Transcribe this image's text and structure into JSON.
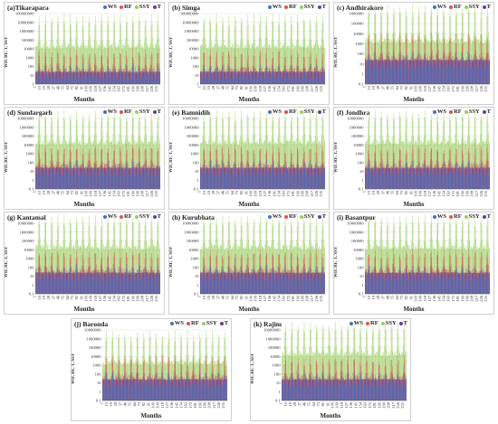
{
  "colors": {
    "WS": "#4a6fbf",
    "RF": "#d9534f",
    "SSY": "#9acd60",
    "T": "#6a3d9a"
  },
  "chart_data": [
    {
      "type": "bar",
      "title": "(a)Tikarapara",
      "legend": [
        "WS",
        "RF",
        "SSY",
        "T"
      ],
      "ylabel": "WD, RF, T, SSY",
      "xlabel": "Months",
      "yscale": "log",
      "yticks": [
        "1",
        "10",
        "100",
        "1000",
        "10000",
        "100000",
        "1000000",
        "10000000",
        "100000000"
      ],
      "xticks": [
        "1",
        "10",
        "19",
        "28",
        "37",
        "46",
        "55",
        "64",
        "73",
        "82",
        "91",
        "100",
        "109",
        "118",
        "127",
        "136",
        "145",
        "154",
        "163",
        "172",
        "181",
        "190",
        "199",
        "208",
        "217",
        "226",
        "235"
      ],
      "series_levels": {
        "WS": 10,
        "RF": 100,
        "SSY": 100000,
        "T": 25
      }
    },
    {
      "type": "bar",
      "title": "(b) Simga",
      "legend": [
        "WS",
        "RF",
        "SSY",
        "T"
      ],
      "ylabel": "WD, RF, T, SSY",
      "xlabel": "Months",
      "yscale": "log",
      "yticks": [
        "1",
        "10",
        "100",
        "1000",
        "10000",
        "100000",
        "1000000",
        "10000000",
        "100000000"
      ],
      "xticks": [
        "1",
        "10",
        "19",
        "28",
        "37",
        "46",
        "55",
        "64",
        "73",
        "82",
        "91",
        "100",
        "109",
        "118",
        "127",
        "136",
        "145",
        "154",
        "163",
        "172",
        "181",
        "190",
        "199",
        "208",
        "217",
        "226",
        "235"
      ],
      "series_levels": {
        "WS": 10,
        "RF": 100,
        "SSY": 100000,
        "T": 25
      }
    },
    {
      "type": "bar",
      "title": "(c) Andhirakore",
      "legend": [
        "WS",
        "RF",
        "SSY",
        "T"
      ],
      "ylabel": "WD, RF, T, SSY",
      "xlabel": "Months",
      "yscale": "log",
      "yticks": [
        "0.1",
        "1",
        "10",
        "100",
        "1000",
        "10000",
        "100000",
        "1000000"
      ],
      "xticks": [
        "1",
        "10",
        "19",
        "28",
        "37",
        "46",
        "55",
        "64",
        "73",
        "82",
        "91",
        "100",
        "109",
        "118",
        "127",
        "136",
        "145",
        "154",
        "163",
        "172",
        "181",
        "190",
        "199",
        "208",
        "217",
        "226",
        "235"
      ],
      "series_levels": {
        "WS": 10,
        "RF": 100,
        "SSY": 10000,
        "T": 25
      }
    },
    {
      "type": "bar",
      "title": "(d) Sundargarh",
      "legend": [
        "WS",
        "RF",
        "SSY",
        "T"
      ],
      "ylabel": "WD, RF, T, SSY",
      "xlabel": "Months",
      "yscale": "log",
      "yticks": [
        "0.1",
        "1",
        "10",
        "100",
        "1000",
        "10000",
        "100000",
        "1000000",
        "10000000"
      ],
      "xticks": [
        "1",
        "10",
        "19",
        "28",
        "37",
        "46",
        "55",
        "64",
        "73",
        "82",
        "91",
        "100",
        "109",
        "118",
        "127",
        "136",
        "145",
        "154",
        "163",
        "172",
        "181",
        "190",
        "199",
        "208",
        "217",
        "226",
        "235"
      ],
      "series_levels": {
        "WS": 10,
        "RF": 100,
        "SSY": 100000,
        "T": 25
      }
    },
    {
      "type": "bar",
      "title": "(e) Bamnidih",
      "legend": [
        "WS",
        "RF",
        "SSY",
        "T"
      ],
      "ylabel": "WD, RF, T, SSY",
      "xlabel": "Months",
      "yscale": "log",
      "yticks": [
        "0.1",
        "1",
        "10",
        "100",
        "1000",
        "10000",
        "100000",
        "1000000",
        "10000000"
      ],
      "xticks": [
        "1",
        "10",
        "19",
        "28",
        "37",
        "46",
        "55",
        "64",
        "73",
        "82",
        "91",
        "100",
        "109",
        "118",
        "127",
        "136",
        "145",
        "154",
        "163",
        "172",
        "181",
        "190",
        "199",
        "208",
        "217",
        "226",
        "235"
      ],
      "series_levels": {
        "WS": 10,
        "RF": 100,
        "SSY": 100000,
        "T": 25
      }
    },
    {
      "type": "bar",
      "title": "(f) Jondhra",
      "legend": [
        "WS",
        "RF",
        "SSY",
        "T"
      ],
      "ylabel": "WD, RF, T, SSY",
      "xlabel": "Months",
      "yscale": "log",
      "yticks": [
        "0.1",
        "1",
        "10",
        "100",
        "1000",
        "10000",
        "100000",
        "1000000",
        "10000000"
      ],
      "xticks": [
        "1",
        "10",
        "19",
        "28",
        "37",
        "46",
        "55",
        "64",
        "73",
        "82",
        "91",
        "100",
        "109",
        "118",
        "127",
        "136",
        "145",
        "154",
        "163",
        "172",
        "181",
        "190",
        "199",
        "208",
        "217",
        "226",
        "235"
      ],
      "series_levels": {
        "WS": 10,
        "RF": 100,
        "SSY": 100000,
        "T": 25
      }
    },
    {
      "type": "bar",
      "title": "(g) Kantamal",
      "legend": [
        "WS",
        "RF",
        "SSY",
        "T"
      ],
      "ylabel": "WD, RF, T, SSY",
      "xlabel": "Months",
      "yscale": "log",
      "yticks": [
        "0.1",
        "1",
        "10",
        "100",
        "1000",
        "10000",
        "100000",
        "1000000",
        "10000000"
      ],
      "xticks": [
        "1",
        "10",
        "19",
        "28",
        "37",
        "46",
        "55",
        "64",
        "73",
        "82",
        "91",
        "100",
        "109",
        "118",
        "127",
        "136",
        "145",
        "154",
        "163",
        "172",
        "181",
        "190",
        "199",
        "208",
        "217",
        "226",
        "235"
      ],
      "series_levels": {
        "WS": 10,
        "RF": 100,
        "SSY": 100000,
        "T": 25
      }
    },
    {
      "type": "bar",
      "title": "(h) Kurubhata",
      "legend": [
        "WS",
        "RF",
        "SSY",
        "T"
      ],
      "ylabel": "WD, RF, T, SSY",
      "xlabel": "Months",
      "yscale": "log",
      "yticks": [
        "0.1",
        "1",
        "10",
        "100",
        "1000",
        "10000",
        "100000",
        "1000000",
        "10000000"
      ],
      "xticks": [
        "1",
        "10",
        "19",
        "28",
        "37",
        "46",
        "55",
        "64",
        "73",
        "82",
        "91",
        "100",
        "109",
        "118",
        "127",
        "136",
        "145",
        "154",
        "163",
        "172",
        "181",
        "190",
        "199",
        "208",
        "217",
        "226",
        "235"
      ],
      "series_levels": {
        "WS": 10,
        "RF": 100,
        "SSY": 100000,
        "T": 25
      }
    },
    {
      "type": "bar",
      "title": "(i) Basantpur",
      "legend": [
        "WS",
        "RF",
        "SSY",
        "T"
      ],
      "ylabel": "WD, RF, T, SSY",
      "xlabel": "Months",
      "yscale": "log",
      "yticks": [
        "0.1",
        "1",
        "10",
        "100",
        "1000",
        "10000",
        "100000",
        "1000000",
        "10000000"
      ],
      "xticks": [
        "1",
        "10",
        "19",
        "28",
        "37",
        "46",
        "55",
        "64",
        "73",
        "82",
        "91",
        "100",
        "109",
        "118",
        "127",
        "136",
        "145",
        "154",
        "163",
        "172",
        "181",
        "190",
        "199",
        "208",
        "217",
        "226",
        "235"
      ],
      "series_levels": {
        "WS": 10,
        "RF": 100,
        "SSY": 100000,
        "T": 25
      }
    },
    {
      "type": "bar",
      "title": "(j) Baronda",
      "legend": [
        "WS",
        "RF",
        "SSY",
        "T"
      ],
      "ylabel": "WD, RF, T, SSY",
      "xlabel": "Months",
      "yscale": "log",
      "yticks": [
        "0.1",
        "1",
        "10",
        "100",
        "1000",
        "10000",
        "100000",
        "1000000",
        "10000000"
      ],
      "xticks": [
        "1",
        "10",
        "19",
        "28",
        "37",
        "46",
        "55",
        "64",
        "73",
        "82",
        "91",
        "100",
        "109",
        "118",
        "127",
        "136",
        "145",
        "154",
        "163",
        "172",
        "181",
        "190",
        "199",
        "208",
        "217",
        "226",
        "235"
      ],
      "series_levels": {
        "WS": 10,
        "RF": 100,
        "SSY": 10000,
        "T": 25
      }
    },
    {
      "type": "bar",
      "title": "(k) Rajim",
      "legend": [
        "WS",
        "RF",
        "SSY",
        "T"
      ],
      "ylabel": "WD, RF, T, SSY",
      "xlabel": "Months",
      "yscale": "log",
      "yticks": [
        "0.1",
        "1",
        "10",
        "100",
        "1000",
        "10000",
        "100000",
        "1000000",
        "10000000"
      ],
      "xticks": [
        "1",
        "10",
        "19",
        "28",
        "37",
        "46",
        "55",
        "64",
        "73",
        "82",
        "91",
        "100",
        "109",
        "118",
        "127",
        "136",
        "145",
        "154",
        "163",
        "172",
        "181",
        "190",
        "199",
        "208",
        "217",
        "226",
        "235"
      ],
      "series_levels": {
        "WS": 10,
        "RF": 100,
        "SSY": 100000,
        "T": 25
      }
    }
  ]
}
